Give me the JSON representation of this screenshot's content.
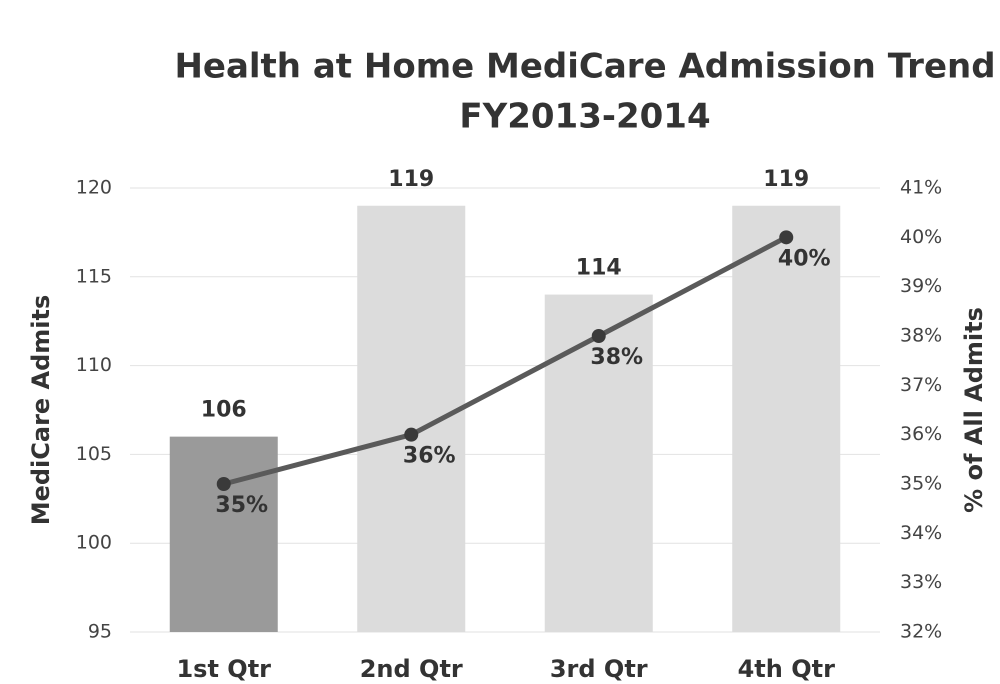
{
  "chart_data": {
    "type": "bar-line",
    "title": [
      "Health at Home MediCare Admission Trend",
      "FY2013-2014"
    ],
    "y_label": "MediCare Admits",
    "y2_label": "% of All Admits",
    "categories": [
      "1st Qtr",
      "2nd Qtr",
      "3rd Qtr",
      "4th Qtr"
    ],
    "series": [
      {
        "type": "bar",
        "colors": [
          "#9a9a9a",
          "#dcdcdc",
          "#dcdcdc",
          "#dcdcdc"
        ],
        "values": [
          106,
          119,
          114,
          119
        ]
      },
      {
        "type": "line",
        "axis": "y2",
        "color": "#5a5a5a",
        "values": [
          35,
          36,
          38,
          40
        ],
        "value_labels": [
          "35%",
          "36%",
          "38%",
          "40%"
        ]
      }
    ],
    "ylim": [
      95,
      120
    ],
    "yticks": [
      95,
      100,
      105,
      110,
      115,
      120
    ],
    "y2lim": [
      32,
      41
    ],
    "y2ticks": [
      {
        "value": 32,
        "label": "32%"
      },
      {
        "value": 33,
        "label": "33%"
      },
      {
        "value": 34,
        "label": "34%"
      },
      {
        "value": 35,
        "label": "35%"
      },
      {
        "value": 36,
        "label": "36%"
      },
      {
        "value": 37,
        "label": "37%"
      },
      {
        "value": 38,
        "label": "38%"
      },
      {
        "value": 39,
        "label": "39%"
      },
      {
        "value": 40,
        "label": "40%"
      },
      {
        "value": 41,
        "label": "41%"
      }
    ],
    "grid": true
  }
}
